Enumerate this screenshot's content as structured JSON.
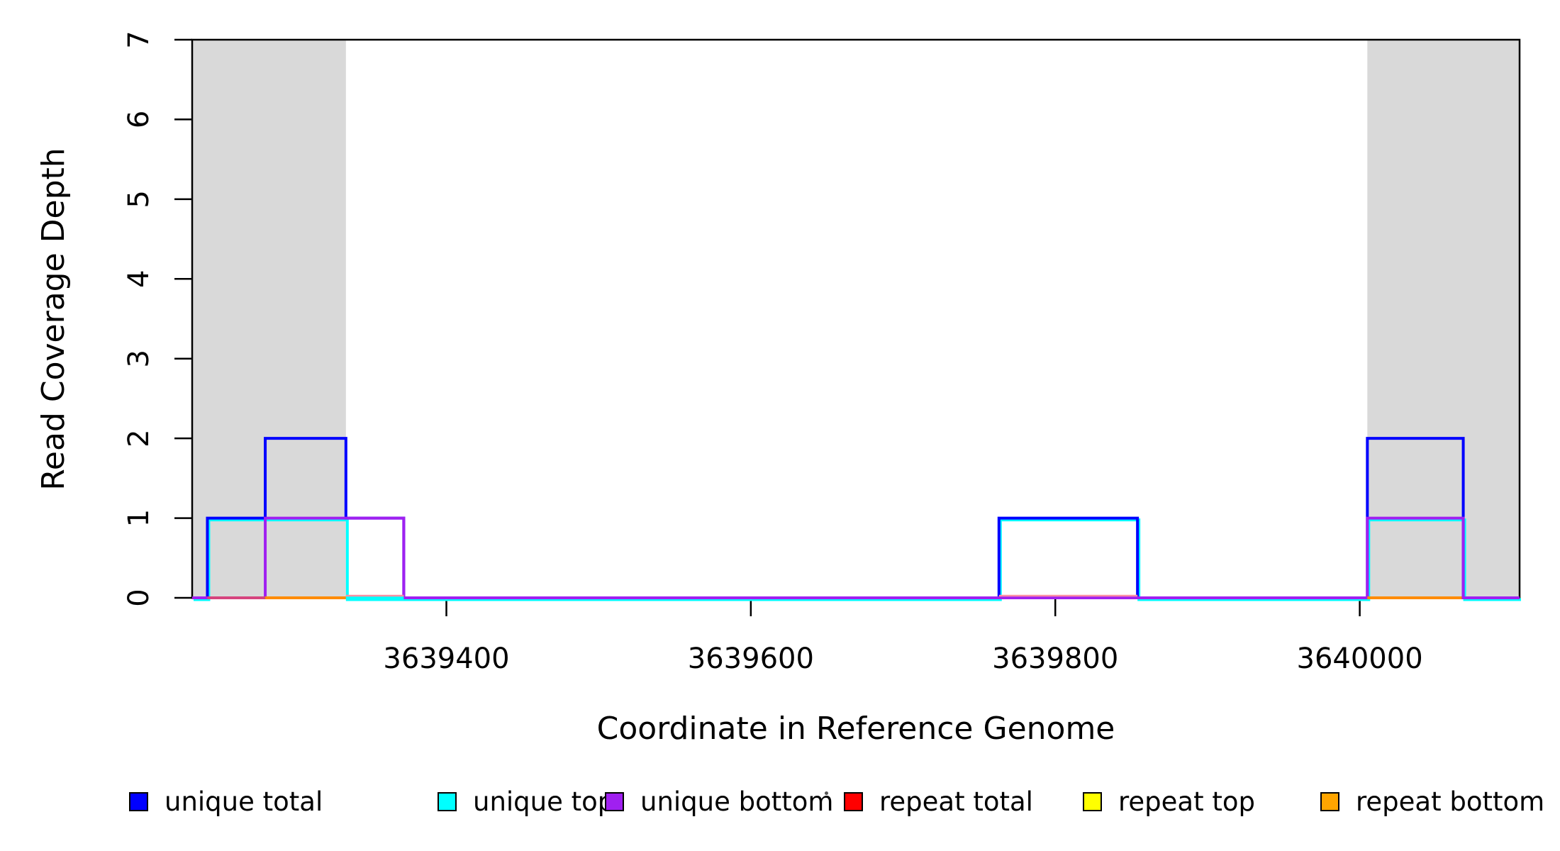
{
  "chart_data": {
    "type": "line",
    "subtype": "step-coverage",
    "title": "",
    "xlabel": "Coordinate in Reference Genome",
    "ylabel": "Read Coverage Depth",
    "xlim": [
      3639233,
      3640105
    ],
    "ylim": [
      0,
      7
    ],
    "x_ticks": [
      3639400,
      3639600,
      3639800,
      3640000
    ],
    "x_tick_labels": [
      "3639400",
      "3639600",
      "3639800",
      "3640000"
    ],
    "y_ticks": [
      0,
      1,
      2,
      3,
      4,
      5,
      6,
      7
    ],
    "grid": false,
    "shaded_regions": [
      {
        "from": 3639233,
        "to": 3639334,
        "color": "#D9D9D9"
      },
      {
        "from": 3640005,
        "to": 3640105,
        "color": "#D9D9D9"
      }
    ],
    "series": [
      {
        "name": "repeat top",
        "color": "#FFFF00",
        "segments": [
          {
            "from": 3639233,
            "to": 3640105,
            "depth": 0
          }
        ]
      },
      {
        "name": "repeat total",
        "color": "#FF0000",
        "segments": [
          {
            "from": 3639233,
            "to": 3640105,
            "depth": 0
          }
        ]
      },
      {
        "name": "repeat bottom",
        "color": "#FF8C00",
        "segments": [
          {
            "from": 3639233,
            "to": 3640105,
            "depth": 0
          }
        ]
      },
      {
        "name": "unique top",
        "color": "#00FFFF",
        "segments": [
          {
            "from": 3639233,
            "to": 3639243,
            "depth": 0
          },
          {
            "from": 3639243,
            "to": 3639334,
            "depth": 1
          },
          {
            "from": 3639334,
            "to": 3639763,
            "depth": 0
          },
          {
            "from": 3639763,
            "to": 3639854,
            "depth": 1
          },
          {
            "from": 3639854,
            "to": 3640005,
            "depth": 0
          },
          {
            "from": 3640005,
            "to": 3640068,
            "depth": 1
          },
          {
            "from": 3640068,
            "to": 3640105,
            "depth": 0
          }
        ]
      },
      {
        "name": "unique total",
        "color": "#0000FF",
        "segments": [
          {
            "from": 3639233,
            "to": 3639243,
            "depth": 0
          },
          {
            "from": 3639243,
            "to": 3639281,
            "depth": 1
          },
          {
            "from": 3639281,
            "to": 3639334,
            "depth": 2
          },
          {
            "from": 3639334,
            "to": 3639372,
            "depth": 1
          },
          {
            "from": 3639372,
            "to": 3639763,
            "depth": 0
          },
          {
            "from": 3639763,
            "to": 3639854,
            "depth": 1
          },
          {
            "from": 3639854,
            "to": 3640005,
            "depth": 0
          },
          {
            "from": 3640005,
            "to": 3640068,
            "depth": 2
          },
          {
            "from": 3640068,
            "to": 3640105,
            "depth": 0
          }
        ]
      },
      {
        "name": "unique bottom",
        "color": "#A020F0",
        "segments": [
          {
            "from": 3639233,
            "to": 3639281,
            "depth": 0
          },
          {
            "from": 3639281,
            "to": 3639372,
            "depth": 1
          },
          {
            "from": 3639372,
            "to": 3640005,
            "depth": 0
          },
          {
            "from": 3640005,
            "to": 3640068,
            "depth": 1
          },
          {
            "from": 3640068,
            "to": 3640105,
            "depth": 0
          }
        ]
      }
    ],
    "zero_line_visible_segments": [
      {
        "from": 3639243,
        "to": 3639281,
        "series": "repeat total",
        "color": "#D6447E",
        "lift": 0
      },
      {
        "from": 3639281,
        "to": 3639333,
        "series": "repeat bottom",
        "color": "#FF8C00",
        "lift": 0
      },
      {
        "from": 3639334,
        "to": 3639372,
        "series": "unique top",
        "color": "#00FFFF",
        "lift": 0
      },
      {
        "from": 3639334,
        "to": 3639372,
        "series": "repeat total",
        "color": "#FF8FA3",
        "lift": 3
      },
      {
        "from": 3639763,
        "to": 3639854,
        "series": "repeat total",
        "color": "#FF8FA3",
        "lift": 3
      },
      {
        "from": 3640005,
        "to": 3640066,
        "series": "repeat bottom",
        "color": "#FF8C00",
        "lift": 0
      }
    ]
  },
  "legend": {
    "items": [
      {
        "label": "unique total",
        "color": "#0000FF"
      },
      {
        "label": "unique top",
        "color": "#00FFFF"
      },
      {
        "label": "unique bottom",
        "color": "#A020F0"
      },
      {
        "label": "repeat total",
        "color": "#FF0000"
      },
      {
        "label": "repeat top",
        "color": "#FFFF00"
      },
      {
        "label": "repeat bottom",
        "color": "#FFA500"
      }
    ],
    "stray_dot": true
  },
  "colors": {
    "axis": "#000000",
    "shade": "#D9D9D9",
    "background": "#FFFFFF"
  }
}
